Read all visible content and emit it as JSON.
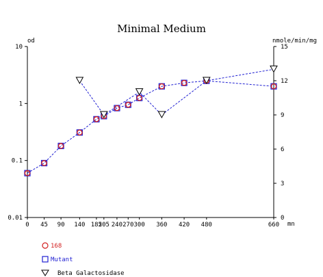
{
  "chart_data": {
    "type": "line",
    "title": "Minimal Medium",
    "xlabel": "mn",
    "ylabel_left": "od",
    "ylabel_right": "nmole/min/mg",
    "x_ticks": [
      0,
      45,
      90,
      140,
      185,
      205,
      240,
      270,
      300,
      360,
      420,
      480,
      660
    ],
    "xlim": [
      0,
      660
    ],
    "y_left": {
      "scale": "log",
      "lim": [
        0.01,
        10
      ],
      "ticks": [
        0.01,
        0.1,
        1,
        10
      ],
      "tick_labels": [
        "0.01",
        "0.1",
        "1",
        "10"
      ]
    },
    "y_right": {
      "scale": "linear",
      "lim": [
        0,
        15
      ],
      "ticks": [
        0,
        3,
        6,
        9,
        12,
        15
      ],
      "tick_labels": [
        "0",
        "3",
        "6",
        "9",
        "12",
        "15"
      ]
    },
    "legend_position": "bottom-left",
    "colors": {
      "s168": "#d21e1e",
      "mutant": "#1e1ed2",
      "beta": "#000000",
      "line": "#1e1ed2"
    },
    "series": [
      {
        "name": "168",
        "axis": "left",
        "marker": "circle",
        "x": [
          0,
          45,
          90,
          140,
          185,
          205,
          240,
          270,
          300,
          360,
          420,
          480,
          660
        ],
        "values": [
          0.06,
          0.09,
          0.18,
          0.31,
          0.53,
          0.6,
          0.83,
          0.95,
          1.25,
          2.0,
          2.3,
          2.5,
          2.0
        ]
      },
      {
        "name": "Mutant",
        "axis": "left",
        "marker": "square",
        "x": [
          0,
          45,
          90,
          140,
          185,
          205,
          240,
          270,
          300,
          360,
          420,
          480,
          660
        ],
        "values": [
          0.06,
          0.09,
          0.18,
          0.31,
          0.53,
          0.6,
          0.83,
          0.95,
          1.25,
          2.0,
          2.3,
          2.5,
          2.0
        ]
      },
      {
        "name": "Beta Galactosidase",
        "axis": "right",
        "marker": "triangle-down",
        "x": [
          140,
          205,
          300,
          360,
          480,
          660
        ],
        "values": [
          12,
          9,
          11,
          9,
          12,
          13
        ]
      }
    ]
  }
}
